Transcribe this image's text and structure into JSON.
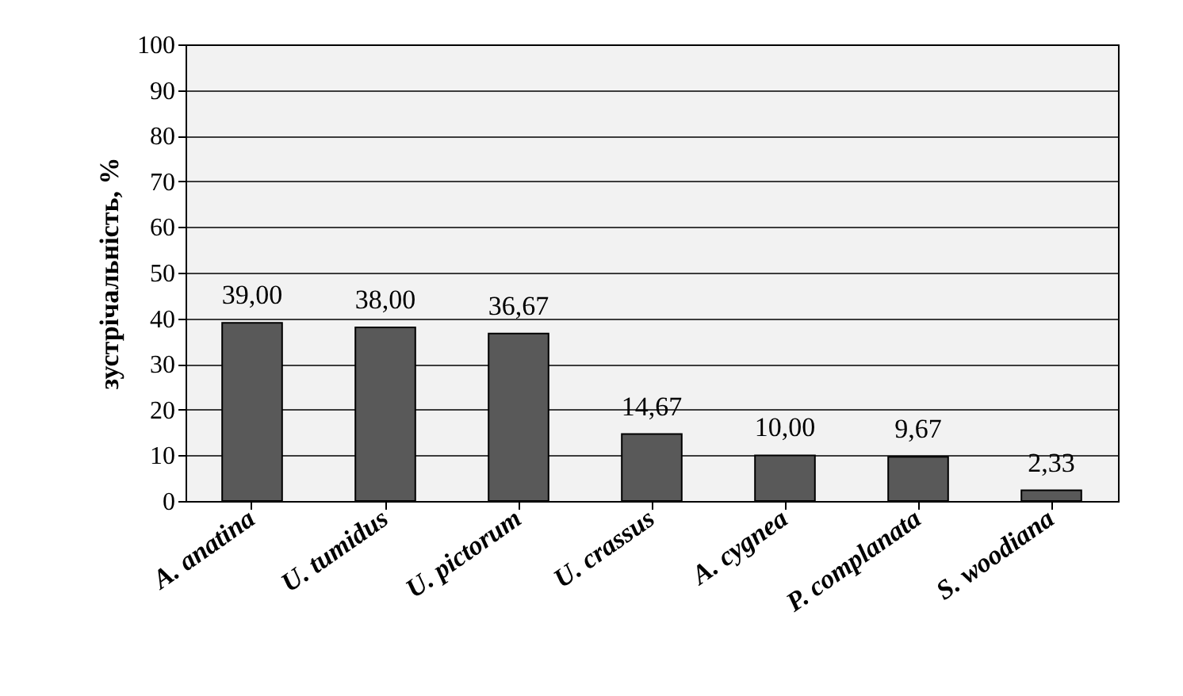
{
  "chart_data": {
    "type": "bar",
    "ylabel": "зустрічальність, %",
    "categories": [
      "A. anatina",
      "U. tumidus",
      "U. pictorum",
      "U. crassus",
      "A. cygnea",
      "P. complanata",
      "S. woodiana"
    ],
    "values": [
      39,
      38,
      36.67,
      14.67,
      10,
      9.67,
      2.33
    ],
    "value_labels": [
      "39,00",
      "38,00",
      "36,67",
      "14,67",
      "10,00",
      "9,67",
      "2,33"
    ],
    "color": "#595959",
    "ylim": [
      0,
      100
    ],
    "yticks": [
      0,
      10,
      20,
      30,
      40,
      50,
      60,
      70,
      80,
      90,
      100
    ],
    "grid": "y"
  }
}
